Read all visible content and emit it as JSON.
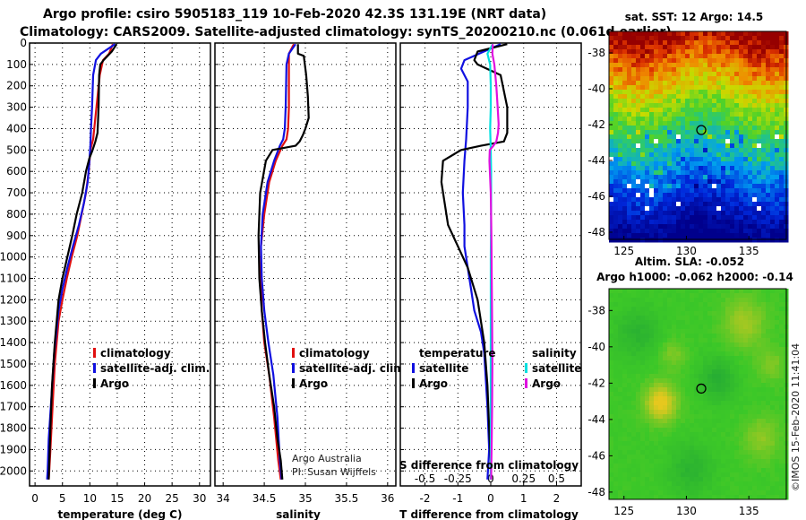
{
  "header": {
    "line1": "Argo profile: csiro 5905183_119 10-Feb-2020 42.3S 131.19E (NRT data)",
    "line2": "Climatology: CARS2009. Satellite-adjusted climatology: synTS_20200210.nc (0.061d earlier)"
  },
  "colors": {
    "climatology": "#e01010",
    "satellite": "#1010e0",
    "argo": "#000000",
    "sat_salinity": "#00e0e0",
    "argo_salinity": "#e010e0"
  },
  "credits": {
    "org": "Argo Australia",
    "pi": "PI: Susan Wijffels"
  },
  "stamp": "©IMOS 15-Feb-2020 11:41:04",
  "chart_data": [
    {
      "type": "line",
      "id": "temperature",
      "xlabel": "temperature (deg C)",
      "ylabel": "",
      "xlim": [
        -1,
        32
      ],
      "ylim": [
        2070,
        0
      ],
      "xticks": [
        0,
        5,
        10,
        15,
        20,
        25,
        30
      ],
      "yticks": [
        0,
        100,
        200,
        300,
        400,
        500,
        600,
        700,
        800,
        900,
        1000,
        1100,
        1200,
        1300,
        1400,
        1500,
        1600,
        1700,
        1800,
        1900,
        2000
      ],
      "legend": {
        "items": [
          "climatology",
          "satellite-adj. clim.",
          "Argo"
        ],
        "colors": [
          "#e01010",
          "#1010e0",
          "#000000"
        ]
      },
      "series": [
        {
          "name": "climatology",
          "color": "#e01010",
          "x": [
            14.2,
            13.5,
            12.4,
            11.8,
            11.2,
            10.6,
            10.1,
            9.8,
            9.3,
            8.5,
            7.7,
            6.7,
            5.8,
            5.0,
            4.3,
            3.6,
            3.2,
            2.8,
            2.6,
            2.5
          ],
          "y": [
            5,
            50,
            80,
            150,
            300,
            450,
            500,
            600,
            700,
            800,
            900,
            1000,
            1100,
            1200,
            1300,
            1500,
            1700,
            1900,
            2000,
            2040
          ]
        },
        {
          "name": "satellite-adj. clim.",
          "color": "#1010e0",
          "x": [
            14.6,
            12.0,
            11.1,
            10.6,
            10.4,
            10.2,
            10.1,
            9.9,
            9.6,
            8.9,
            8.0,
            6.9,
            5.9,
            5.0,
            4.3,
            3.5,
            3.0,
            2.5,
            2.3,
            2.2
          ],
          "y": [
            5,
            50,
            80,
            150,
            300,
            400,
            480,
            560,
            650,
            750,
            850,
            950,
            1050,
            1150,
            1250,
            1450,
            1650,
            1850,
            2000,
            2040
          ]
        },
        {
          "name": "Argo",
          "color": "#000000",
          "x": [
            14.9,
            14.0,
            12.5,
            11.9,
            11.7,
            11.6,
            11.4,
            11.0,
            10.5,
            9.9,
            9.3,
            8.6,
            7.6,
            6.8,
            5.9,
            5.0,
            4.3,
            3.6,
            3.1,
            2.8,
            2.5
          ],
          "y": [
            5,
            40,
            80,
            100,
            150,
            300,
            420,
            460,
            500,
            540,
            600,
            700,
            800,
            900,
            1000,
            1100,
            1200,
            1400,
            1600,
            1800,
            2040
          ]
        }
      ]
    },
    {
      "type": "line",
      "id": "salinity",
      "xlabel": "salinity",
      "ylabel": "",
      "xlim": [
        33.9,
        36.1
      ],
      "ylim": [
        2070,
        0
      ],
      "xticks": [
        34,
        34.5,
        35,
        35.5,
        36
      ],
      "legend": {
        "items": [
          "climatology",
          "satellite-adj. clim.",
          "Argo"
        ],
        "colors": [
          "#e01010",
          "#1010e0",
          "#000000"
        ]
      },
      "series": [
        {
          "name": "climatology",
          "color": "#e01010",
          "x": [
            34.86,
            34.8,
            34.8,
            34.8,
            34.79,
            34.77,
            34.72,
            34.64,
            34.56,
            34.5,
            34.46,
            34.46,
            34.47,
            34.5,
            34.56,
            34.62,
            34.67,
            34.7
          ],
          "y": [
            5,
            50,
            100,
            300,
            400,
            450,
            480,
            550,
            650,
            800,
            950,
            1100,
            1250,
            1400,
            1550,
            1750,
            1950,
            2040
          ]
        },
        {
          "name": "satellite-adj. clim.",
          "color": "#1010e0",
          "x": [
            34.88,
            34.8,
            34.77,
            34.76,
            34.75,
            34.73,
            34.69,
            34.62,
            34.54,
            34.48,
            34.46,
            34.47,
            34.5,
            34.55,
            34.61,
            34.66,
            34.69,
            34.71
          ],
          "y": [
            5,
            50,
            100,
            300,
            400,
            450,
            480,
            550,
            650,
            800,
            950,
            1100,
            1250,
            1400,
            1550,
            1750,
            1950,
            2040
          ]
        },
        {
          "name": "Argo",
          "color": "#000000",
          "x": [
            34.91,
            34.91,
            34.98,
            35.01,
            35.03,
            35.04,
            35.0,
            34.97,
            34.93,
            34.88,
            34.6,
            34.52,
            34.45,
            34.43,
            34.44,
            34.47,
            34.51,
            34.56,
            34.62,
            34.66,
            34.7,
            34.72
          ],
          "y": [
            5,
            50,
            60,
            150,
            250,
            350,
            400,
            430,
            460,
            480,
            500,
            550,
            700,
            900,
            1100,
            1250,
            1400,
            1550,
            1700,
            1850,
            1950,
            2040
          ]
        }
      ]
    },
    {
      "type": "line",
      "id": "differences",
      "xlabel": "T difference from climatology",
      "xlabel2": "S difference from climatology",
      "xlim": [
        -2.75,
        2.75
      ],
      "ylim": [
        2070,
        0
      ],
      "xticks": [
        -2,
        -1,
        0,
        1,
        2
      ],
      "xticks2_labels": [
        "-0.5",
        "-0.25",
        "0",
        "0.25",
        "0.5"
      ],
      "xticks2": [
        -0.5,
        -0.25,
        0,
        0.25,
        0.5
      ],
      "legend": {
        "temperature_header": "temperature",
        "salinity_header": "salinity",
        "items": [
          "satellite",
          "Argo"
        ],
        "temperature_colors": [
          "#1010e0",
          "#000000"
        ],
        "salinity_colors": [
          "#00e0e0",
          "#e010e0"
        ]
      },
      "series": [
        {
          "name": "temperature satellite",
          "color": "#1010e0",
          "x": [
            0.3,
            -0.8,
            -0.9,
            -0.7,
            -0.7,
            -0.75,
            -0.8,
            -0.85,
            -0.8,
            -0.8,
            -0.7,
            -0.6,
            -0.5,
            -0.3,
            -0.2,
            -0.1,
            -0.05,
            -0.1
          ],
          "y": [
            5,
            80,
            120,
            180,
            300,
            450,
            550,
            700,
            850,
            950,
            1050,
            1150,
            1250,
            1350,
            1450,
            1700,
            1900,
            2040
          ]
        },
        {
          "name": "temperature Argo",
          "color": "#000000",
          "x": [
            0.5,
            -0.4,
            -0.5,
            -0.4,
            0.3,
            0.5,
            0.5,
            0.4,
            -0.3,
            -0.9,
            -1.45,
            -1.5,
            -1.4,
            -1.3,
            -1.0,
            -0.7,
            -0.4,
            -0.2,
            -0.1,
            -0.05,
            0.0,
            0.0
          ],
          "y": [
            5,
            40,
            80,
            100,
            150,
            300,
            420,
            460,
            480,
            500,
            550,
            650,
            750,
            850,
            950,
            1050,
            1200,
            1400,
            1600,
            1800,
            1950,
            2040
          ]
        },
        {
          "name": "salinity satellite",
          "color": "#00e0e0",
          "x": [
            0.06,
            -0.1,
            -0.02,
            0.0,
            0.0,
            -0.02,
            0.0,
            0.01,
            0.01,
            0.0,
            0.0,
            0.0,
            0.0,
            0.0
          ],
          "y": [
            5,
            50,
            100,
            200,
            300,
            400,
            500,
            600,
            800,
            1000,
            1200,
            1500,
            1800,
            2040
          ]
        },
        {
          "name": "salinity Argo",
          "color": "#e010e0",
          "x": [
            0.06,
            0.05,
            0.11,
            0.17,
            0.21,
            0.24,
            0.22,
            0.17,
            0.08,
            -0.03,
            -0.04,
            0.0,
            0.02,
            0.03,
            0.04,
            0.05,
            0.04,
            0.03,
            0.02,
            0.01
          ],
          "y": [
            5,
            50,
            100,
            200,
            300,
            380,
            420,
            460,
            480,
            500,
            550,
            700,
            900,
            1100,
            1300,
            1500,
            1700,
            1850,
            1950,
            2040
          ]
        }
      ]
    },
    {
      "type": "heatmap",
      "id": "sst-map",
      "title": "sat. SST: 12 Argo: 14.5",
      "xticks": [
        125,
        130,
        135
      ],
      "yticks": [
        -38,
        -40,
        -42,
        -44,
        -46,
        -48
      ],
      "xlim": [
        123.8,
        138
      ],
      "ylim": [
        -48.4,
        -36.8
      ],
      "argo_position": {
        "lon": 131.19,
        "lat": -42.3
      }
    },
    {
      "type": "heatmap",
      "id": "sla-map",
      "title": "Altim. SLA: -0.052",
      "subtitle": "Argo h1000: -0.062 h2000: -0.14",
      "xticks": [
        125,
        130,
        135
      ],
      "yticks": [
        -38,
        -40,
        -42,
        -44,
        -46,
        -48
      ],
      "xlim": [
        123.8,
        138
      ],
      "ylim": [
        -48.4,
        -36.8
      ],
      "argo_position": {
        "lon": 131.19,
        "lat": -42.3
      }
    }
  ]
}
